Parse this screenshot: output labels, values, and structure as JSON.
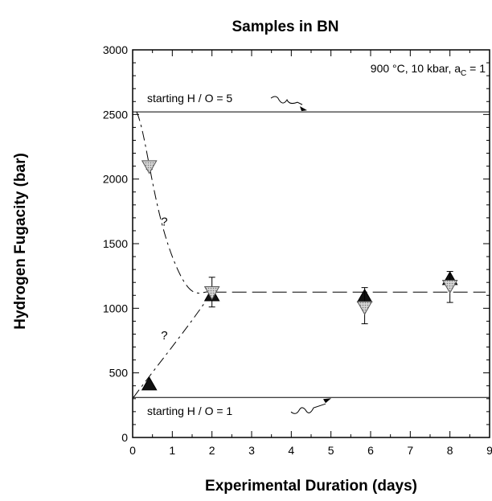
{
  "chart_data": {
    "type": "scatter",
    "title": "Samples in BN",
    "xlabel": "Experimental Duration (days)",
    "ylabel": "Hydrogen Fugacity (bar)",
    "xlim": [
      0,
      9
    ],
    "ylim": [
      0,
      3000
    ],
    "xticks": [
      "0",
      "1",
      "2",
      "3",
      "4",
      "5",
      "6",
      "7",
      "8",
      "9"
    ],
    "yticks": [
      "0",
      "500",
      "1000",
      "1500",
      "2000",
      "2500",
      "3000"
    ],
    "condition_text": "900 °C, 10 kbar, a",
    "condition_sub": "C",
    "condition_tail": " = 1",
    "reference_lines": [
      {
        "label": "starting H / O = 5",
        "y": 2520
      },
      {
        "label": "starting H / O = 1",
        "y": 310
      }
    ],
    "question_marks": [
      "?",
      "?"
    ],
    "series": [
      {
        "marker": "triangle-up-filled",
        "points": [
          {
            "x": 0.42,
            "y": 410
          },
          {
            "x": 2.0,
            "y": 1100
          },
          {
            "x": 5.85,
            "y": 1090
          },
          {
            "x": 8.0,
            "y": 1225
          }
        ]
      },
      {
        "marker": "triangle-down-shaded",
        "points": [
          {
            "x": 0.42,
            "y": 2100,
            "err": [
              2075,
              2125
            ]
          },
          {
            "x": 2.0,
            "y": 1125,
            "err": [
              1010,
              1240
            ]
          },
          {
            "x": 5.85,
            "y": 1010,
            "err": [
              880,
              1160
            ]
          },
          {
            "x": 8.0,
            "y": 1175,
            "err": [
              1045,
              1285
            ]
          }
        ]
      }
    ],
    "plateau_y": 1125,
    "grid": false
  }
}
